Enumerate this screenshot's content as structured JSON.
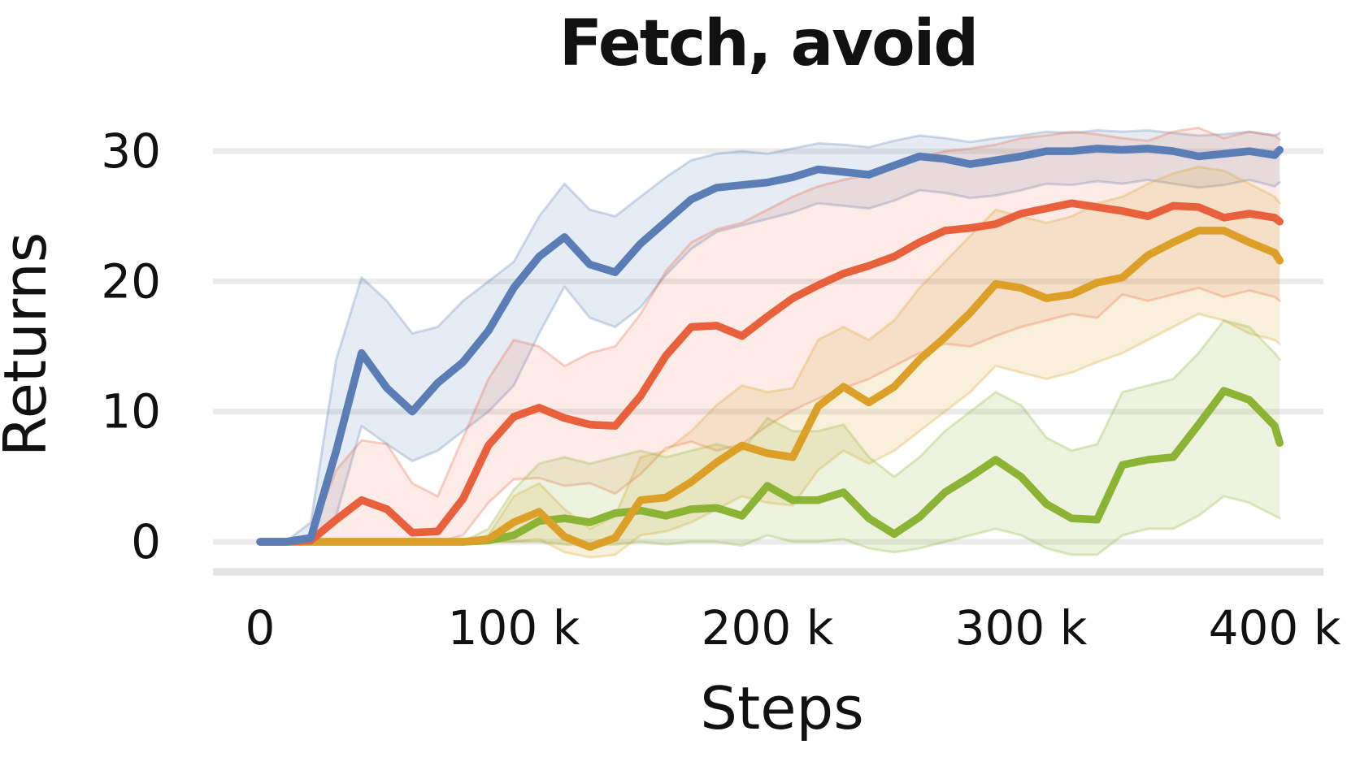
{
  "title": "Fetch, avoid",
  "axes": {
    "xlabel": "Steps",
    "ylabel": "Returns",
    "x_ticks": [
      {
        "value": 0,
        "label": "0"
      },
      {
        "value": 100,
        "label": "100 k"
      },
      {
        "value": 200,
        "label": "200 k"
      },
      {
        "value": 300,
        "label": "300 k"
      },
      {
        "value": 400,
        "label": "400 k"
      }
    ],
    "y_ticks": [
      {
        "value": 0,
        "label": "0"
      },
      {
        "value": 10,
        "label": "10"
      },
      {
        "value": 20,
        "label": "20"
      },
      {
        "value": 30,
        "label": "30"
      }
    ]
  },
  "chart_data": {
    "type": "line",
    "title": "Fetch, avoid",
    "xlabel": "Steps",
    "ylabel": "Returns",
    "x_unit": "thousand steps",
    "xlim": [
      -18,
      420
    ],
    "ylim": [
      -2.3,
      32.3
    ],
    "grid": true,
    "legend_position": "none",
    "grid_color": "#ebebeb",
    "baseline_color": "#e2e2e2",
    "x": [
      0,
      10,
      20,
      30,
      40,
      50,
      60,
      70,
      80,
      90,
      100,
      110,
      120,
      130,
      140,
      150,
      160,
      170,
      180,
      190,
      200,
      210,
      220,
      230,
      240,
      250,
      260,
      270,
      280,
      290,
      300,
      310,
      320,
      330,
      340,
      350,
      360,
      370,
      380,
      390,
      400,
      402
    ],
    "series": [
      {
        "name": "blue",
        "color": "#5a7db6",
        "fill_opacity": 0.15,
        "values": [
          0,
          0,
          0.3,
          7,
          14.5,
          11.8,
          10.0,
          12.2,
          13.8,
          16.2,
          19.5,
          21.9,
          23.4,
          21.3,
          20.7,
          22.9,
          24.6,
          26.3,
          27.2,
          27.4,
          27.6,
          28.0,
          28.6,
          28.4,
          28.2,
          28.9,
          29.6,
          29.4,
          29.0,
          29.3,
          29.6,
          30.0,
          30.0,
          30.2,
          30.1,
          30.2,
          30.0,
          29.6,
          29.8,
          30.0,
          29.7,
          30.1
        ],
        "band_upper": [
          0,
          0,
          1.5,
          14,
          20.3,
          18.5,
          16.0,
          16.5,
          18.5,
          20.0,
          21.5,
          25.0,
          27.5,
          25.5,
          25.0,
          26.5,
          28.0,
          29.3,
          29.8,
          30.0,
          29.8,
          30.2,
          30.6,
          30.5,
          30.3,
          30.8,
          31.2,
          31.0,
          30.7,
          31.0,
          31.2,
          31.5,
          31.4,
          31.6,
          31.5,
          31.6,
          31.4,
          31.2,
          31.3,
          31.5,
          31.2,
          31.4
        ],
        "band_lower": [
          0,
          0,
          0,
          2,
          8.9,
          7.5,
          6.2,
          7.0,
          8.5,
          10.0,
          12.0,
          16.0,
          19.6,
          17.2,
          16.5,
          18.0,
          20.5,
          22.5,
          23.8,
          24.3,
          24.8,
          25.3,
          26.0,
          25.8,
          25.6,
          26.2,
          27.0,
          26.8,
          26.4,
          26.6,
          27.0,
          27.5,
          27.4,
          27.7,
          27.5,
          27.8,
          27.5,
          27.2,
          27.4,
          27.8,
          27.3,
          27.6
        ]
      },
      {
        "name": "orange",
        "color": "#e8613c",
        "fill_opacity": 0.13,
        "values": [
          0,
          0,
          0.1,
          1.7,
          3.2,
          2.5,
          0.7,
          0.8,
          3.3,
          7.4,
          9.6,
          10.3,
          9.5,
          9.0,
          8.9,
          11.2,
          14.3,
          16.5,
          16.6,
          15.8,
          17.3,
          18.7,
          19.7,
          20.6,
          21.2,
          21.9,
          23.0,
          23.9,
          24.1,
          24.4,
          25.2,
          25.6,
          26.0,
          25.7,
          25.4,
          25.0,
          25.8,
          25.7,
          24.9,
          25.2,
          24.9,
          24.6
        ],
        "band_upper": [
          0,
          0,
          0.5,
          5.5,
          7.8,
          7.5,
          4.5,
          3.5,
          8.0,
          12.5,
          15.5,
          15.0,
          13.5,
          14.5,
          15.0,
          17.5,
          20.8,
          23.0,
          24.0,
          24.5,
          25.5,
          26.5,
          27.3,
          27.8,
          28.2,
          28.8,
          29.5,
          30.0,
          30.2,
          30.5,
          31.0,
          31.2,
          31.5,
          31.3,
          31.0,
          30.8,
          31.5,
          31.8,
          31.0,
          31.5,
          31.2,
          30.9
        ],
        "band_lower": [
          0,
          0,
          0,
          0,
          0.2,
          0.1,
          0,
          0,
          0.5,
          3.0,
          4.8,
          4.9,
          4.3,
          4.5,
          3.7,
          5.2,
          7.2,
          7.7,
          7.0,
          7.5,
          8.9,
          10.1,
          11.0,
          11.8,
          12.5,
          13.5,
          14.5,
          15.2,
          15.0,
          15.8,
          16.5,
          17.0,
          17.5,
          17.2,
          19.0,
          18.5,
          19.0,
          19.5,
          18.8,
          19.3,
          18.8,
          18.5
        ]
      },
      {
        "name": "gold",
        "color": "#dca028",
        "fill_opacity": 0.16,
        "values": [
          0,
          0,
          0,
          0,
          0,
          0,
          0,
          0,
          0,
          0.2,
          1.5,
          2.3,
          0.4,
          -0.4,
          0.3,
          3.2,
          3.4,
          4.6,
          6.1,
          7.4,
          6.8,
          6.5,
          10.4,
          11.9,
          10.7,
          11.9,
          14.0,
          15.7,
          17.6,
          19.8,
          19.5,
          18.7,
          19.0,
          19.9,
          20.3,
          22.0,
          23.0,
          23.9,
          23.9,
          23.0,
          22.2,
          21.6
        ],
        "band_upper": [
          0,
          0,
          0,
          0,
          0,
          0,
          0,
          0,
          0,
          0.5,
          3.5,
          4.5,
          2.5,
          1.0,
          2.0,
          6.5,
          7.0,
          8.5,
          10.5,
          12.0,
          11.5,
          11.8,
          15.5,
          16.5,
          15.5,
          17.0,
          19.5,
          21.5,
          23.5,
          25.5,
          25.0,
          24.5,
          25.0,
          26.0,
          26.5,
          27.5,
          28.3,
          28.8,
          28.5,
          27.5,
          26.5,
          26.0
        ],
        "band_lower": [
          0,
          0,
          0,
          0,
          0,
          0,
          0,
          0,
          0,
          0,
          0,
          0.2,
          -0.8,
          -1.2,
          -1.0,
          0.5,
          0.8,
          1.5,
          2.5,
          3.5,
          3.0,
          2.8,
          5.5,
          7.0,
          6.0,
          7.0,
          8.5,
          10.0,
          11.5,
          13.5,
          13.0,
          12.5,
          13.0,
          13.8,
          14.5,
          15.5,
          16.5,
          17.5,
          17.0,
          16.0,
          15.5,
          15.2
        ]
      },
      {
        "name": "green",
        "color": "#8cb434",
        "fill_opacity": 0.16,
        "values": [
          0,
          0,
          0,
          0,
          0,
          0,
          0,
          0,
          0,
          0.1,
          0.5,
          1.6,
          1.8,
          1.5,
          2.2,
          2.4,
          2.0,
          2.5,
          2.6,
          2.0,
          4.3,
          3.2,
          3.2,
          3.8,
          1.8,
          0.6,
          1.9,
          3.8,
          5.0,
          6.3,
          5.0,
          2.9,
          1.8,
          1.7,
          5.9,
          6.3,
          6.5,
          9.0,
          11.6,
          10.9,
          8.9,
          7.6
        ],
        "band_upper": [
          0,
          0,
          0,
          0,
          0,
          0,
          0,
          0,
          0,
          1.0,
          4.0,
          6.0,
          6.5,
          6.0,
          6.5,
          7.0,
          6.5,
          7.0,
          7.5,
          7.0,
          9.5,
          8.5,
          8.5,
          9.0,
          6.5,
          5.0,
          6.5,
          8.5,
          10.0,
          11.5,
          10.5,
          8.0,
          7.0,
          7.5,
          11.5,
          12.0,
          12.5,
          14.5,
          17.0,
          16.5,
          14.5,
          14.0
        ],
        "band_lower": [
          0,
          0,
          0,
          0,
          0,
          0,
          0,
          0,
          0,
          0,
          0,
          0,
          -0.2,
          -0.3,
          -0.2,
          0,
          -0.2,
          0,
          0,
          -0.3,
          0.5,
          0,
          0,
          0.2,
          -0.5,
          -0.8,
          -0.5,
          0,
          0.5,
          1.0,
          0.5,
          -0.5,
          -1.0,
          -1.0,
          0.5,
          1.0,
          1.0,
          2.0,
          3.5,
          3.0,
          2.0,
          1.8
        ]
      }
    ]
  }
}
